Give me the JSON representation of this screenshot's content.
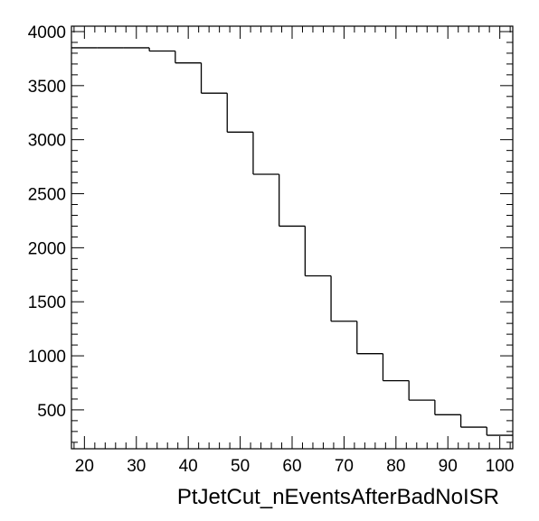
{
  "chart_data": {
    "type": "histogram",
    "xlabel": "PtJetCut_nEventsAfterBadNoISR",
    "ylabel": "",
    "xlim": [
      17.5,
      102.5
    ],
    "ylim": [
      140,
      4050
    ],
    "x_ticks": [
      20,
      30,
      40,
      50,
      60,
      70,
      80,
      90,
      100
    ],
    "y_ticks": [
      500,
      1000,
      1500,
      2000,
      2500,
      3000,
      3500,
      4000
    ],
    "bin_edges": [
      17.5,
      22.5,
      27.5,
      32.5,
      37.5,
      42.5,
      47.5,
      52.5,
      57.5,
      62.5,
      67.5,
      72.5,
      77.5,
      82.5,
      87.5,
      92.5,
      97.5,
      102.5
    ],
    "values": [
      3850,
      3850,
      3850,
      3820,
      3710,
      3430,
      3070,
      2680,
      2200,
      1740,
      1320,
      1020,
      770,
      590,
      455,
      340,
      265
    ],
    "grid": false,
    "colors": {
      "line": "#000000",
      "frame": "#000000",
      "background": "#ffffff"
    }
  }
}
